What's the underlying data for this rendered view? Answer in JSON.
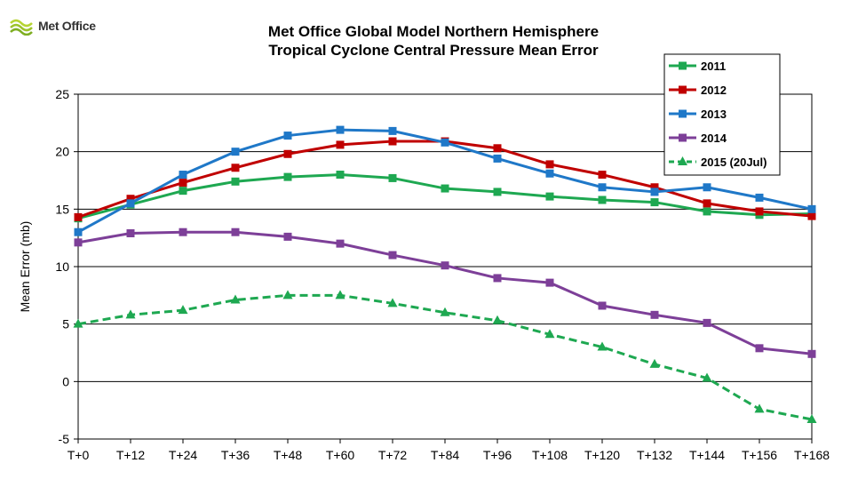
{
  "logo": {
    "text": "Met Office"
  },
  "chart_data": {
    "type": "line",
    "title": "Met Office Global Model Northern Hemisphere",
    "subtitle": "Tropical Cyclone Central Pressure Mean Error",
    "xlabel": "",
    "ylabel": "Mean Error (mb)",
    "categories": [
      "T+0",
      "T+12",
      "T+24",
      "T+36",
      "T+48",
      "T+60",
      "T+72",
      "T+84",
      "T+96",
      "T+108",
      "T+120",
      "T+132",
      "T+144",
      "T+156",
      "T+168"
    ],
    "ylim": [
      -5,
      25
    ],
    "yticks": [
      -5,
      0,
      5,
      10,
      15,
      20,
      25
    ],
    "grid": true,
    "legend_position": "top-right",
    "series": [
      {
        "name": "2011",
        "color": "#1ea851",
        "marker": "square",
        "dash": "solid",
        "values": [
          14.2,
          15.4,
          16.6,
          17.4,
          17.8,
          18.0,
          17.7,
          16.8,
          16.5,
          16.1,
          15.8,
          15.6,
          14.8,
          14.5,
          14.6
        ]
      },
      {
        "name": "2012",
        "color": "#c00000",
        "marker": "square",
        "dash": "solid",
        "values": [
          14.3,
          15.9,
          17.3,
          18.6,
          19.8,
          20.6,
          20.9,
          20.9,
          20.3,
          18.9,
          18.0,
          16.9,
          15.5,
          14.8,
          14.4
        ]
      },
      {
        "name": "2013",
        "color": "#1f78c8",
        "marker": "square",
        "dash": "solid",
        "values": [
          13.0,
          15.5,
          18.0,
          20.0,
          21.4,
          21.9,
          21.8,
          20.8,
          19.4,
          18.1,
          16.9,
          16.5,
          16.9,
          16.0,
          15.0
        ]
      },
      {
        "name": "2014",
        "color": "#7d3f98",
        "marker": "square",
        "dash": "solid",
        "values": [
          12.1,
          12.9,
          13.0,
          13.0,
          12.6,
          12.0,
          11.0,
          10.1,
          9.0,
          8.6,
          6.6,
          5.8,
          5.1,
          2.9,
          2.4
        ]
      },
      {
        "name": "2015 (20Jul)",
        "color": "#1ea851",
        "marker": "triangle",
        "dash": "dashed",
        "values": [
          5.0,
          5.8,
          6.2,
          7.1,
          7.5,
          7.5,
          6.8,
          6.0,
          5.3,
          4.1,
          3.0,
          1.5,
          0.3,
          -2.4,
          -3.3
        ]
      }
    ]
  }
}
